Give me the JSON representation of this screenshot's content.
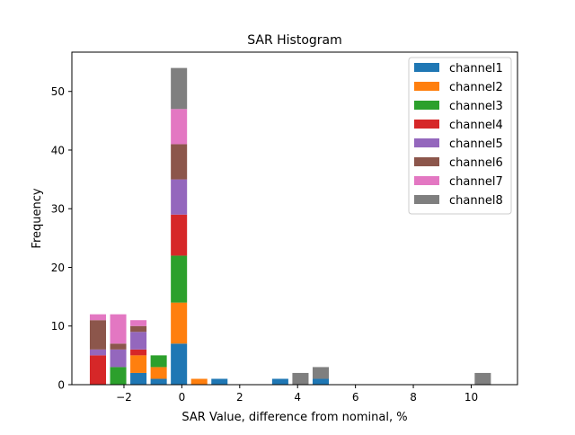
{
  "chart_data": {
    "type": "bar",
    "stacked": true,
    "title": "SAR Histogram",
    "xlabel": "SAR Value, difference from nominal, %",
    "ylabel": "Frequency",
    "xlim": [
      -3.8,
      11.6
    ],
    "ylim": [
      0,
      56.7
    ],
    "xticks": [
      -2,
      0,
      2,
      4,
      6,
      8,
      10
    ],
    "xtick_labels": [
      "−2",
      "0",
      "2",
      "4",
      "6",
      "8",
      "10"
    ],
    "yticks": [
      0,
      10,
      20,
      30,
      40,
      50
    ],
    "ytick_labels": [
      "0",
      "10",
      "20",
      "30",
      "40",
      "50"
    ],
    "bar_width": 0.56,
    "legend_position": "top-right",
    "series": [
      {
        "name": "channel1",
        "color": "#1f77b4",
        "bars": [
          {
            "x": -1.5,
            "y0": 0,
            "y1": 2
          },
          {
            "x": -0.8,
            "y0": 0,
            "y1": 1
          },
          {
            "x": -0.1,
            "y0": 0,
            "y1": 7
          },
          {
            "x": 1.3,
            "y0": 0,
            "y1": 1
          },
          {
            "x": 3.4,
            "y0": 0,
            "y1": 1
          },
          {
            "x": 4.8,
            "y0": 0,
            "y1": 1
          }
        ]
      },
      {
        "name": "channel2",
        "color": "#ff7f0e",
        "bars": [
          {
            "x": -1.5,
            "y0": 2,
            "y1": 5
          },
          {
            "x": -0.8,
            "y0": 1,
            "y1": 3
          },
          {
            "x": -0.1,
            "y0": 7,
            "y1": 14
          },
          {
            "x": 0.6,
            "y0": 0,
            "y1": 1
          }
        ]
      },
      {
        "name": "channel3",
        "color": "#2ca02c",
        "bars": [
          {
            "x": -2.2,
            "y0": 0,
            "y1": 3
          },
          {
            "x": -0.8,
            "y0": 3,
            "y1": 5
          },
          {
            "x": -0.1,
            "y0": 14,
            "y1": 22
          }
        ]
      },
      {
        "name": "channel4",
        "color": "#d62728",
        "bars": [
          {
            "x": -2.9,
            "y0": 0,
            "y1": 5
          },
          {
            "x": -1.5,
            "y0": 5,
            "y1": 6
          },
          {
            "x": -0.1,
            "y0": 22,
            "y1": 29
          }
        ]
      },
      {
        "name": "channel5",
        "color": "#9467bd",
        "bars": [
          {
            "x": -2.9,
            "y0": 5,
            "y1": 6
          },
          {
            "x": -2.2,
            "y0": 3,
            "y1": 6
          },
          {
            "x": -1.5,
            "y0": 6,
            "y1": 9
          },
          {
            "x": -0.1,
            "y0": 29,
            "y1": 35
          }
        ]
      },
      {
        "name": "channel6",
        "color": "#8c564b",
        "bars": [
          {
            "x": -2.9,
            "y0": 6,
            "y1": 11
          },
          {
            "x": -2.2,
            "y0": 6,
            "y1": 7
          },
          {
            "x": -1.5,
            "y0": 9,
            "y1": 10
          },
          {
            "x": -0.1,
            "y0": 35,
            "y1": 41
          }
        ]
      },
      {
        "name": "channel7",
        "color": "#e377c2",
        "bars": [
          {
            "x": -2.9,
            "y0": 11,
            "y1": 12
          },
          {
            "x": -2.2,
            "y0": 7,
            "y1": 12
          },
          {
            "x": -1.5,
            "y0": 10,
            "y1": 11
          },
          {
            "x": -0.1,
            "y0": 41,
            "y1": 47
          }
        ]
      },
      {
        "name": "channel8",
        "color": "#7f7f7f",
        "bars": [
          {
            "x": -0.1,
            "y0": 47,
            "y1": 54
          },
          {
            "x": 4.1,
            "y0": 0,
            "y1": 2
          },
          {
            "x": 4.8,
            "y0": 1,
            "y1": 3
          },
          {
            "x": 10.4,
            "y0": 0,
            "y1": 2
          }
        ]
      }
    ]
  }
}
